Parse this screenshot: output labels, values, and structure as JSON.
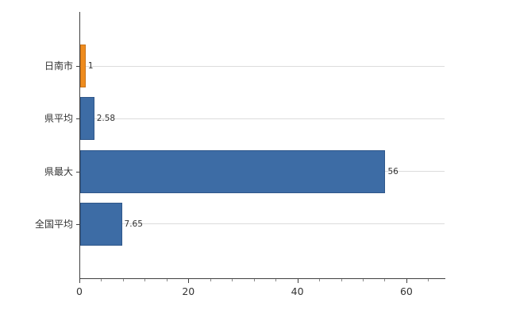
{
  "chart_data": {
    "type": "bar",
    "orientation": "horizontal",
    "title": "",
    "xlabel": "",
    "ylabel": "",
    "categories": [
      "日南市",
      "県平均",
      "県最大",
      "全国平均"
    ],
    "values": [
      1,
      2.58,
      56,
      7.65
    ],
    "value_labels": [
      "1",
      "2.58",
      "56",
      "7.65"
    ],
    "bar_colors": [
      "#ef8c1e",
      "#3d6ca5",
      "#3d6ca5",
      "#3d6ca5"
    ],
    "bar_border_colors": [
      "#c9741a",
      "#2f578a",
      "#2f578a",
      "#2f578a"
    ],
    "x_ticks": [
      0,
      20,
      40,
      60
    ],
    "x_tick_labels": [
      "0",
      "20",
      "40",
      "60"
    ],
    "x_minor_tick_step": 4,
    "xlim": [
      0,
      67
    ],
    "grid": "light horizontal line at each category center",
    "legend": "none",
    "axis_color": "#404040",
    "grid_color": "#dcdcdc",
    "label_color": "#333333",
    "background_color": "#ffffff"
  }
}
